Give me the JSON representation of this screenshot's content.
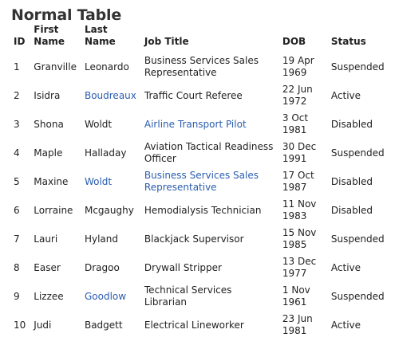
{
  "title": "Normal Table",
  "columns": [
    "ID",
    "First Name",
    "Last Name",
    "Job Title",
    "DOB",
    "Status"
  ],
  "rows": [
    {
      "id": "1",
      "first": "Granville",
      "last": "Leonardo",
      "job": "Business Services Sales Representative",
      "dob": "19 Apr 1969",
      "status": "Suspended",
      "last_link": false,
      "job_link": false
    },
    {
      "id": "2",
      "first": "Isidra",
      "last": "Boudreaux",
      "job": "Traffic Court Referee",
      "dob": "22 Jun 1972",
      "status": "Active",
      "last_link": true,
      "job_link": false
    },
    {
      "id": "3",
      "first": "Shona",
      "last": "Woldt",
      "job": "Airline Transport Pilot",
      "dob": "3 Oct 1981",
      "status": "Disabled",
      "last_link": false,
      "job_link": true
    },
    {
      "id": "4",
      "first": "Maple",
      "last": "Halladay",
      "job": "Aviation Tactical Readiness Officer",
      "dob": "30 Dec 1991",
      "status": "Suspended",
      "last_link": false,
      "job_link": false
    },
    {
      "id": "5",
      "first": "Maxine",
      "last": "Woldt",
      "job": "Business Services Sales Representative",
      "dob": "17 Oct 1987",
      "status": "Disabled",
      "last_link": true,
      "job_link": true
    },
    {
      "id": "6",
      "first": "Lorraine",
      "last": "Mcgaughy",
      "job": "Hemodialysis Technician",
      "dob": "11 Nov 1983",
      "status": "Disabled",
      "last_link": false,
      "job_link": false
    },
    {
      "id": "7",
      "first": "Lauri",
      "last": "Hyland",
      "job": "Blackjack Supervisor",
      "dob": "15 Nov 1985",
      "status": "Suspended",
      "last_link": false,
      "job_link": false
    },
    {
      "id": "8",
      "first": "Easer",
      "last": "Dragoo",
      "job": "Drywall Stripper",
      "dob": "13 Dec 1977",
      "status": "Active",
      "last_link": false,
      "job_link": false
    },
    {
      "id": "9",
      "first": "Lizzee",
      "last": "Goodlow",
      "job": "Technical Services Librarian",
      "dob": "1 Nov 1961",
      "status": "Suspended",
      "last_link": true,
      "job_link": false
    },
    {
      "id": "10",
      "first": "Judi",
      "last": "Badgett",
      "job": "Electrical Lineworker",
      "dob": "23 Jun 1981",
      "status": "Active",
      "last_link": false,
      "job_link": false
    }
  ],
  "colors": {
    "link": "#2a5db0",
    "text": "#222222",
    "title": "#333333"
  }
}
